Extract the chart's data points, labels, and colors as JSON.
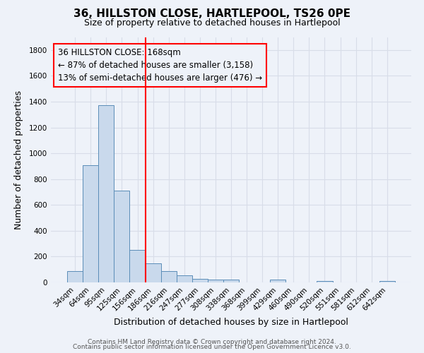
{
  "title": "36, HILLSTON CLOSE, HARTLEPOOL, TS26 0PE",
  "subtitle": "Size of property relative to detached houses in Hartlepool",
  "xlabel": "Distribution of detached houses by size in Hartlepool",
  "ylabel": "Number of detached properties",
  "bin_labels": [
    "34sqm",
    "64sqm",
    "95sqm",
    "125sqm",
    "156sqm",
    "186sqm",
    "216sqm",
    "247sqm",
    "277sqm",
    "308sqm",
    "338sqm",
    "368sqm",
    "399sqm",
    "429sqm",
    "460sqm",
    "490sqm",
    "520sqm",
    "551sqm",
    "581sqm",
    "612sqm",
    "642sqm"
  ],
  "bar_values": [
    90,
    910,
    1370,
    710,
    250,
    145,
    90,
    55,
    30,
    20,
    20,
    0,
    0,
    20,
    0,
    0,
    10,
    0,
    0,
    0,
    10
  ],
  "bar_color": "#c9d9ec",
  "bar_edge_color": "#5b8db8",
  "vline_x": 4.5,
  "vline_color": "red",
  "annotation_line1": "36 HILLSTON CLOSE: 168sqm",
  "annotation_line2": "← 87% of detached houses are smaller (3,158)",
  "annotation_line3": "13% of semi-detached houses are larger (476) →",
  "box_edge_color": "red",
  "ylim": [
    0,
    1900
  ],
  "yticks": [
    0,
    200,
    400,
    600,
    800,
    1000,
    1200,
    1400,
    1600,
    1800
  ],
  "footer_line1": "Contains HM Land Registry data © Crown copyright and database right 2024.",
  "footer_line2": "Contains public sector information licensed under the Open Government Licence v3.0.",
  "background_color": "#eef2f9",
  "grid_color": "#d8dde8",
  "title_fontsize": 11,
  "subtitle_fontsize": 9,
  "axis_label_fontsize": 9,
  "tick_fontsize": 7.5,
  "annotation_fontsize": 8.5,
  "footer_fontsize": 6.5
}
